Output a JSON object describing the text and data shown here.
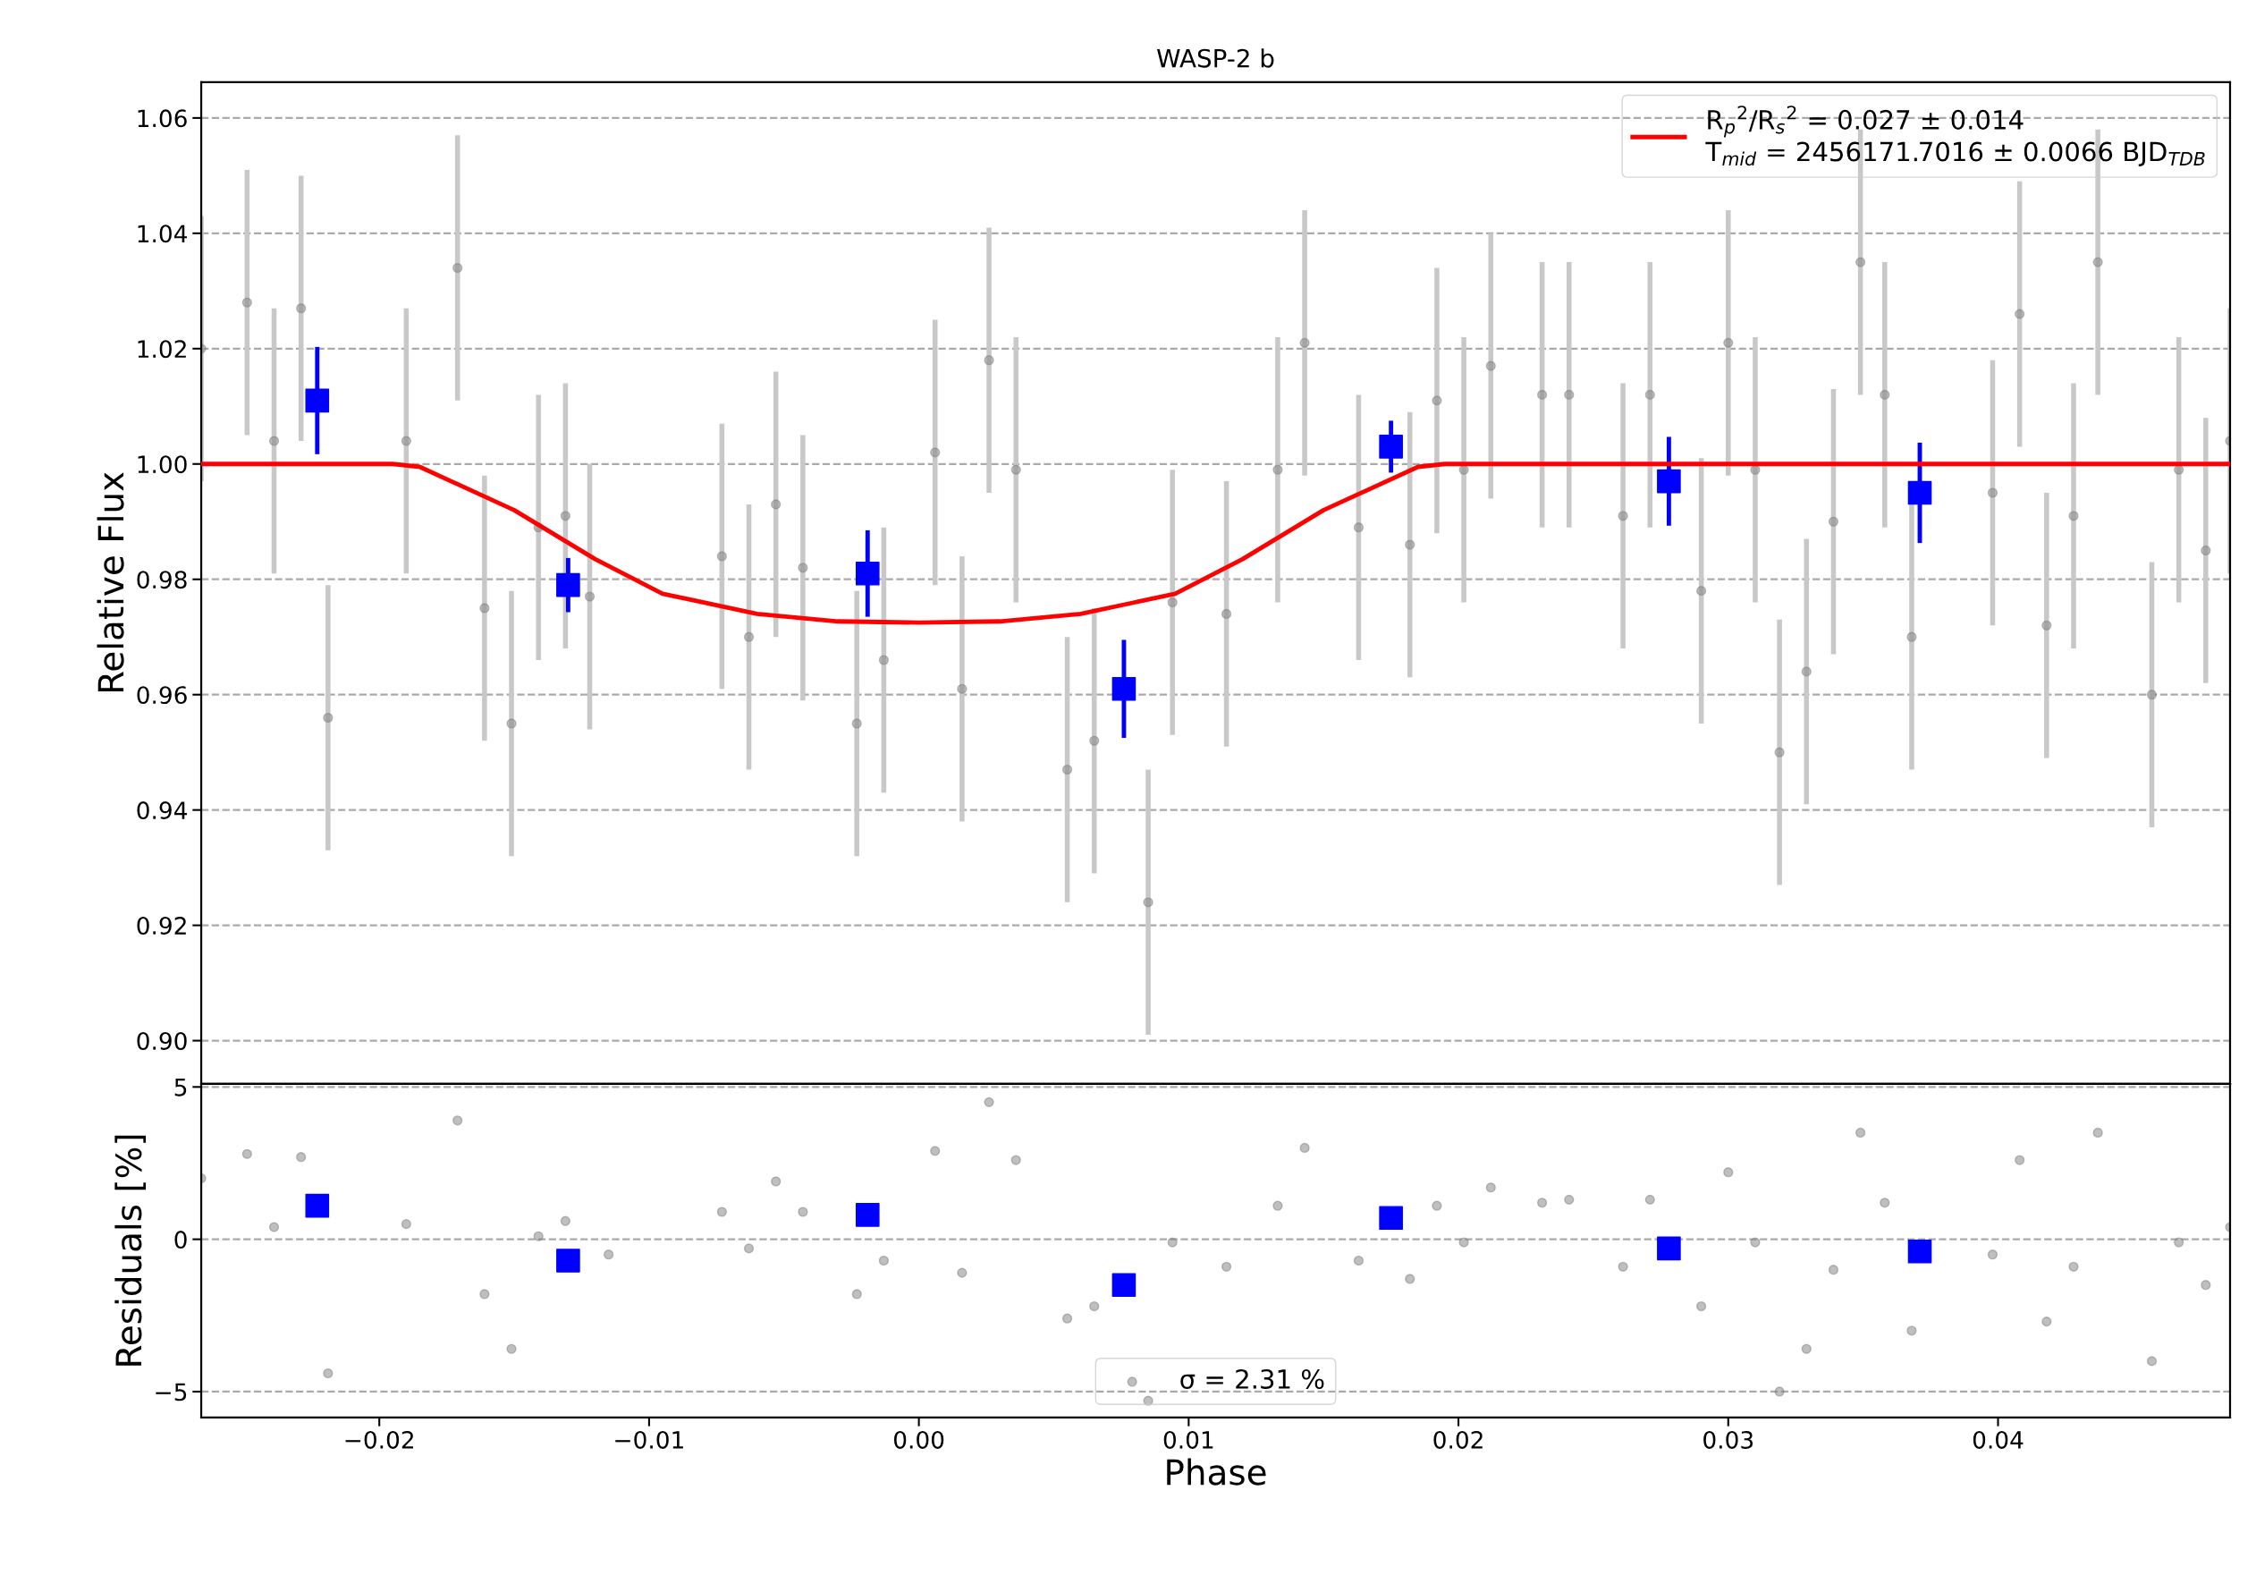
{
  "chart_data": [
    {
      "type": "scatter",
      "title": "WASP-2 b",
      "ylabel": "Relative Flux",
      "xlim": [
        -0.0266,
        0.0486
      ],
      "ylim": [
        0.8925,
        1.0662
      ],
      "yticks": [
        {
          "value": 0.9,
          "label": "0.90"
        },
        {
          "value": 0.92,
          "label": "0.92"
        },
        {
          "value": 0.94,
          "label": "0.94"
        },
        {
          "value": 0.96,
          "label": "0.96"
        },
        {
          "value": 0.98,
          "label": "0.98"
        },
        {
          "value": 1.0,
          "label": "1.00"
        },
        {
          "value": 1.02,
          "label": "1.02"
        },
        {
          "value": 1.04,
          "label": "1.04"
        },
        {
          "value": 1.06,
          "label": "1.06"
        }
      ],
      "tick_labels": "y",
      "grid": "y",
      "legend": "top right",
      "series": [
        {
          "marker": "circle",
          "color": "#808080",
          "x": [
            -0.0266,
            -0.0249,
            -0.0239,
            -0.0229,
            -0.0219,
            -0.019,
            -0.0171,
            -0.0161,
            -0.0151,
            -0.0141,
            -0.0131,
            -0.0122,
            -0.0073,
            -0.0063,
            -0.0053,
            -0.0043,
            -0.0023,
            -0.0013,
            0.0006,
            0.0016,
            0.0026,
            0.0036,
            0.0055,
            0.0065,
            0.0085,
            0.0094,
            0.0114,
            0.0133,
            0.0143,
            0.0163,
            0.0182,
            0.0192,
            0.0202,
            0.0212,
            0.0231,
            0.0241,
            0.0261,
            0.0271,
            0.029,
            0.03,
            0.031,
            0.0319,
            0.0329,
            0.0339,
            0.0349,
            0.0358,
            0.0368,
            0.0398,
            0.0408,
            0.0418,
            0.0428,
            0.0437,
            0.0457,
            0.0467,
            0.0477,
            0.0486
          ],
          "values": [
            1.02,
            1.028,
            1.004,
            1.027,
            0.956,
            1.004,
            1.034,
            0.975,
            0.955,
            0.989,
            0.991,
            0.977,
            0.984,
            0.97,
            0.993,
            0.982,
            0.955,
            0.966,
            1.002,
            0.961,
            1.018,
            0.999,
            0.947,
            0.952,
            0.924,
            0.976,
            0.974,
            0.999,
            1.021,
            0.989,
            0.986,
            1.011,
            0.999,
            1.017,
            1.012,
            1.012,
            0.991,
            1.012,
            0.978,
            1.021,
            0.999,
            0.95,
            0.964,
            0.99,
            1.035,
            1.012,
            0.97,
            0.995,
            1.026,
            0.972,
            0.991,
            1.035,
            0.96,
            0.999,
            0.985,
            1.004
          ],
          "errors": [
            0.023,
            0.023,
            0.023,
            0.023,
            0.023,
            0.023,
            0.023,
            0.023,
            0.023,
            0.023,
            0.023,
            0.023,
            0.023,
            0.023,
            0.023,
            0.023,
            0.023,
            0.023,
            0.023,
            0.023,
            0.023,
            0.023,
            0.023,
            0.023,
            0.023,
            0.023,
            0.023,
            0.023,
            0.023,
            0.023,
            0.023,
            0.023,
            0.023,
            0.023,
            0.023,
            0.023,
            0.023,
            0.023,
            0.023,
            0.023,
            0.023,
            0.023,
            0.023,
            0.023,
            0.023,
            0.023,
            0.023,
            0.023,
            0.023,
            0.023,
            0.023,
            0.023,
            0.023,
            0.023,
            0.023,
            0.023
          ]
        },
        {
          "marker": "square",
          "color": "#0000ff",
          "x": [
            -0.0223,
            -0.013,
            -0.0019,
            0.0076,
            0.0175,
            0.0278,
            0.0371
          ],
          "values": [
            1.011,
            0.979,
            0.981,
            0.961,
            1.003,
            0.997,
            0.995
          ],
          "errors": [
            0.0093,
            0.0047,
            0.0075,
            0.0085,
            0.0045,
            0.0077,
            0.0087
          ]
        },
        {
          "type": "line",
          "color": "#ff0000",
          "line_style": "solid",
          "marker": "none",
          "name": "R$_{p}$$^{2}$/R$_{s}$$^{2}$ = 0.027 ± 0.014\nT$_{mid}$ = 2456171.7016 ± 0.0066 BJD$_{TDB}$",
          "x": [
            -0.0266,
            -0.0195,
            -0.0185,
            -0.015,
            -0.012,
            -0.0095,
            -0.006,
            -0.003,
            0.0,
            0.003,
            0.006,
            0.0095,
            0.012,
            0.015,
            0.0185,
            0.0195,
            0.0486
          ],
          "values": [
            1.0,
            1.0,
            0.9995,
            0.992,
            0.9835,
            0.9775,
            0.974,
            0.9727,
            0.9725,
            0.9727,
            0.974,
            0.9775,
            0.9835,
            0.992,
            0.9995,
            1.0,
            1.0
          ]
        }
      ]
    },
    {
      "type": "scatter",
      "xlabel": "Phase",
      "ylabel": "Residuals [%]",
      "xlim": [
        -0.0266,
        0.0486
      ],
      "ylim": [
        -5.85,
        5.1
      ],
      "xticks": [
        {
          "value": -0.02,
          "label": "−0.02"
        },
        {
          "value": -0.01,
          "label": "−0.01"
        },
        {
          "value": 0.0,
          "label": "0.00"
        },
        {
          "value": 0.01,
          "label": "0.01"
        },
        {
          "value": 0.02,
          "label": "0.02"
        },
        {
          "value": 0.03,
          "label": "0.03"
        },
        {
          "value": 0.04,
          "label": "0.04"
        }
      ],
      "yticks": [
        {
          "value": -5,
          "label": "−5"
        },
        0,
        5
      ],
      "grid": "y",
      "legend": "bottom",
      "series": [
        {
          "marker": "circle",
          "color": "#808080",
          "name": "σ = 2.31 %",
          "x": [
            -0.0266,
            -0.0249,
            -0.0239,
            -0.0229,
            -0.0219,
            -0.019,
            -0.0171,
            -0.0161,
            -0.0151,
            -0.0141,
            -0.0131,
            -0.0115,
            -0.0073,
            -0.0063,
            -0.0053,
            -0.0043,
            -0.0023,
            -0.0013,
            0.0006,
            0.0016,
            0.0026,
            0.0036,
            0.0055,
            0.0065,
            0.0085,
            0.0094,
            0.0114,
            0.0133,
            0.0143,
            0.0163,
            0.0182,
            0.0192,
            0.0202,
            0.0212,
            0.0231,
            0.0241,
            0.0261,
            0.0271,
            0.029,
            0.03,
            0.031,
            0.0319,
            0.0329,
            0.0339,
            0.0349,
            0.0358,
            0.0368,
            0.0398,
            0.0408,
            0.0418,
            0.0428,
            0.0437,
            0.0457,
            0.0467,
            0.0477,
            0.0486
          ],
          "values": [
            2.0,
            2.8,
            0.4,
            2.7,
            -4.4,
            0.5,
            3.9,
            -1.8,
            -3.6,
            0.1,
            0.6,
            -0.5,
            0.9,
            -0.3,
            1.9,
            0.9,
            -1.8,
            -0.7,
            2.9,
            -1.1,
            4.5,
            2.6,
            -2.6,
            -2.2,
            -5.3,
            -0.1,
            -0.9,
            1.1,
            3.0,
            -0.7,
            -1.3,
            1.1,
            -0.1,
            1.7,
            1.2,
            1.3,
            -0.9,
            1.3,
            -2.2,
            2.2,
            -0.1,
            -5.0,
            -3.6,
            -1.0,
            3.5,
            1.2,
            -3.0,
            -0.5,
            2.6,
            -2.7,
            -0.9,
            3.5,
            -4.0,
            -0.1,
            -1.5,
            0.4
          ]
        },
        {
          "marker": "square",
          "color": "#0000ff",
          "x": [
            -0.0223,
            -0.013,
            -0.0019,
            0.0076,
            0.0175,
            0.0278,
            0.0371
          ],
          "values": [
            1.1,
            -0.7,
            0.8,
            -1.5,
            0.7,
            -0.3,
            -0.4
          ]
        }
      ]
    }
  ]
}
